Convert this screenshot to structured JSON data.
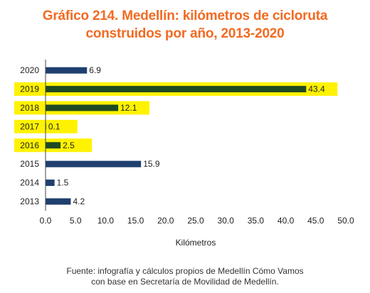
{
  "title": {
    "line1": "Gráfico 214. Medellín: kilómetros de cicloruta",
    "line2": "construidos por año, 2013-2020"
  },
  "source": {
    "line1": "Fuente: infografía y cálculos propios de Medellín Cómo Vamos",
    "line2": "con base en Secretaría de Movilidad de Medellín."
  },
  "colors": {
    "title": "#f26a21",
    "bar_default": "#1f3f6e",
    "bar_highlight": "#1e4a23",
    "highlight_band": "#fff200",
    "axis": "#444444"
  },
  "chart_data": {
    "type": "bar",
    "orientation": "horizontal",
    "title": "Gráfico 214. Medellín: kilómetros de cicloruta construidos por año, 2013-2020",
    "xlabel": "Kilómetros",
    "ylabel": "",
    "xlim": [
      0,
      50
    ],
    "x_ticks": [
      "0.0",
      "5.0",
      "10.0",
      "15.0",
      "20.0",
      "25.0",
      "30.0",
      "35.0",
      "40.0",
      "45.0",
      "50.0"
    ],
    "grid": false,
    "categories": [
      "2020",
      "2019",
      "2018",
      "2017",
      "2016",
      "2015",
      "2014",
      "2013"
    ],
    "values": [
      6.9,
      43.4,
      12.1,
      0.1,
      2.5,
      15.9,
      1.5,
      4.2
    ],
    "value_labels": [
      "6.9",
      "43.4",
      "12.1",
      "0.1",
      "2.5",
      "15.9",
      "1.5",
      "4.2"
    ],
    "highlighted": [
      "2019",
      "2018",
      "2017",
      "2016"
    ]
  }
}
